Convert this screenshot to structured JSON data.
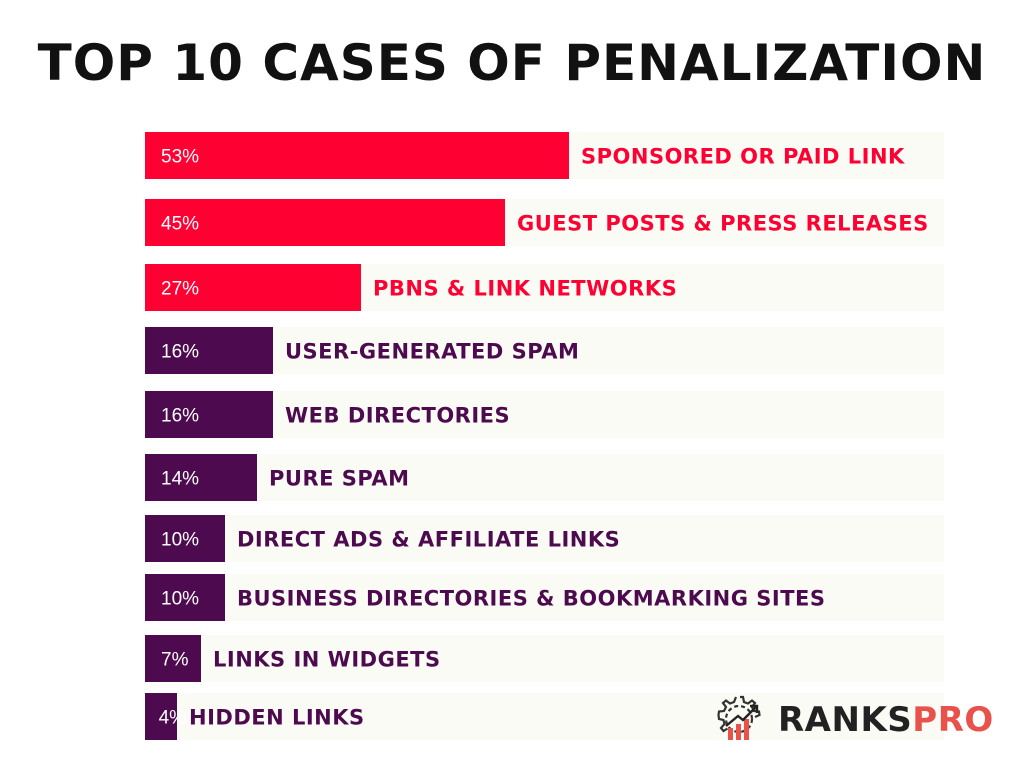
{
  "chart_data": {
    "type": "bar",
    "orientation": "horizontal",
    "title": "TOP 10 CASES OF PENALIZATION",
    "categories": [
      "Sponsored or Paid Link",
      "Guest Posts & Press Releases",
      "PBNs & Link Networks",
      "User-Generated Spam",
      "Web Directories",
      "Pure Spam",
      "Direct Ads & Affiliate Links",
      "Business Directories & Bookmarking Sites",
      "Links in Widgets",
      "Hidden Links"
    ],
    "values": [
      53,
      45,
      27,
      16,
      16,
      14,
      10,
      10,
      7,
      4
    ],
    "value_labels": [
      "53%",
      "45%",
      "27%",
      "16%",
      "16%",
      "14%",
      "10%",
      "10%",
      "7%",
      "4%"
    ],
    "xlim": [
      0,
      100
    ],
    "unit": "%",
    "grid": false,
    "legend": "none",
    "colors": {
      "high": "#ff0033",
      "low": "#4d0a4f"
    },
    "high_count": 3
  },
  "brand": {
    "name_part1": "RANKS",
    "name_part2": "PRO",
    "icon": "gear-chart-icon"
  }
}
